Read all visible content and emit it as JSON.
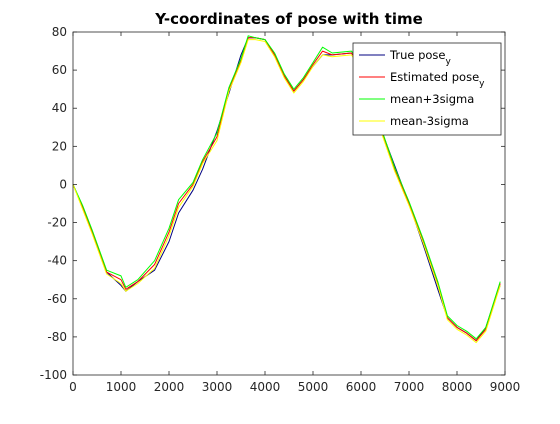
{
  "chart_data": {
    "type": "line",
    "title": "Y-coordinates of pose with time",
    "xlabel": "",
    "ylabel": "",
    "xlim": [
      0,
      9000
    ],
    "ylim": [
      -100,
      80
    ],
    "xticks": [
      0,
      1000,
      2000,
      3000,
      4000,
      5000,
      6000,
      7000,
      8000,
      9000
    ],
    "yticks": [
      -100,
      -80,
      -60,
      -40,
      -20,
      0,
      20,
      40,
      60,
      80
    ],
    "grid": false,
    "legend_position": "top-right",
    "series": [
      {
        "name": "True pose",
        "name_subscript": "y",
        "color": "#000080",
        "x": [
          0,
          200,
          400,
          700,
          1000,
          1100,
          1350,
          1700,
          2000,
          2200,
          2500,
          2700,
          3000,
          3250,
          3500,
          3650,
          3800,
          4000,
          4200,
          4400,
          4600,
          4800,
          5000,
          5200,
          5400,
          5800,
          6000,
          6200,
          6400,
          6700,
          7000,
          7300,
          7600,
          7800,
          8000,
          8200,
          8400,
          8600,
          8800,
          8900
        ],
        "y": [
          0,
          -12,
          -25,
          -46,
          -53,
          -56,
          -51,
          -45,
          -30,
          -15,
          -3,
          8,
          28,
          48,
          68,
          77,
          77,
          76,
          68,
          57,
          49,
          55,
          62,
          68,
          68,
          69,
          62,
          45,
          30,
          10,
          -10,
          -32,
          -55,
          -70,
          -75,
          -78,
          -82,
          -75,
          -60,
          -53
        ]
      },
      {
        "name": "Estimated pose",
        "name_subscript": "y",
        "color": "#ff0000",
        "x": [
          0,
          200,
          400,
          700,
          1000,
          1100,
          1350,
          1700,
          2000,
          2200,
          2500,
          2700,
          3000,
          3250,
          3500,
          3650,
          3800,
          4000,
          4200,
          4400,
          4600,
          4800,
          5000,
          5200,
          5400,
          5800,
          6000,
          6200,
          6400,
          6700,
          7000,
          7300,
          7600,
          7800,
          8000,
          8200,
          8400,
          8600,
          8800,
          8900
        ],
        "y": [
          0,
          -12,
          -25,
          -46,
          -50,
          -55,
          -51,
          -42,
          -25,
          -10,
          0,
          12,
          25,
          50,
          65,
          77,
          77,
          76,
          68,
          57,
          49,
          55,
          63,
          70,
          68,
          69,
          62,
          45,
          30,
          8,
          -10,
          -30,
          -52,
          -70,
          -75,
          -78,
          -82,
          -76,
          -60,
          -52
        ]
      },
      {
        "name": "mean+3sigma",
        "color": "#00ff00",
        "x": [
          0,
          200,
          400,
          700,
          1000,
          1100,
          1350,
          1700,
          2000,
          2200,
          2500,
          2700,
          3000,
          3250,
          3500,
          3650,
          3800,
          4000,
          4200,
          4400,
          4600,
          4800,
          5000,
          5200,
          5400,
          5800,
          6000,
          6200,
          6400,
          6700,
          7000,
          7300,
          7600,
          7800,
          8000,
          8200,
          8400,
          8600,
          8800,
          8900
        ],
        "y": [
          0,
          -11,
          -24,
          -45,
          -48,
          -54,
          -50,
          -40,
          -23,
          -8,
          1,
          13,
          27,
          51,
          66,
          78,
          77,
          76,
          69,
          58,
          50,
          56,
          64,
          72,
          69,
          70,
          63,
          46,
          31,
          9,
          -9,
          -29,
          -51,
          -69,
          -74,
          -77,
          -81,
          -75,
          -59,
          -51
        ]
      },
      {
        "name": "mean-3sigma",
        "color": "#ffff00",
        "x": [
          0,
          200,
          400,
          700,
          1000,
          1100,
          1350,
          1700,
          2000,
          2200,
          2500,
          2700,
          3000,
          3250,
          3500,
          3650,
          3800,
          4000,
          4200,
          4400,
          4600,
          4800,
          5000,
          5200,
          5400,
          5800,
          6000,
          6200,
          6400,
          6700,
          7000,
          7300,
          7600,
          7800,
          8000,
          8200,
          8400,
          8600,
          8800,
          8900
        ],
        "y": [
          0,
          -13,
          -26,
          -47,
          -52,
          -56,
          -52,
          -44,
          -27,
          -12,
          -1,
          11,
          23,
          49,
          64,
          76,
          76,
          75,
          67,
          56,
          48,
          54,
          62,
          68,
          67,
          68,
          61,
          44,
          29,
          7,
          -11,
          -31,
          -53,
          -71,
          -76,
          -79,
          -83,
          -77,
          -61,
          -53
        ]
      }
    ]
  }
}
